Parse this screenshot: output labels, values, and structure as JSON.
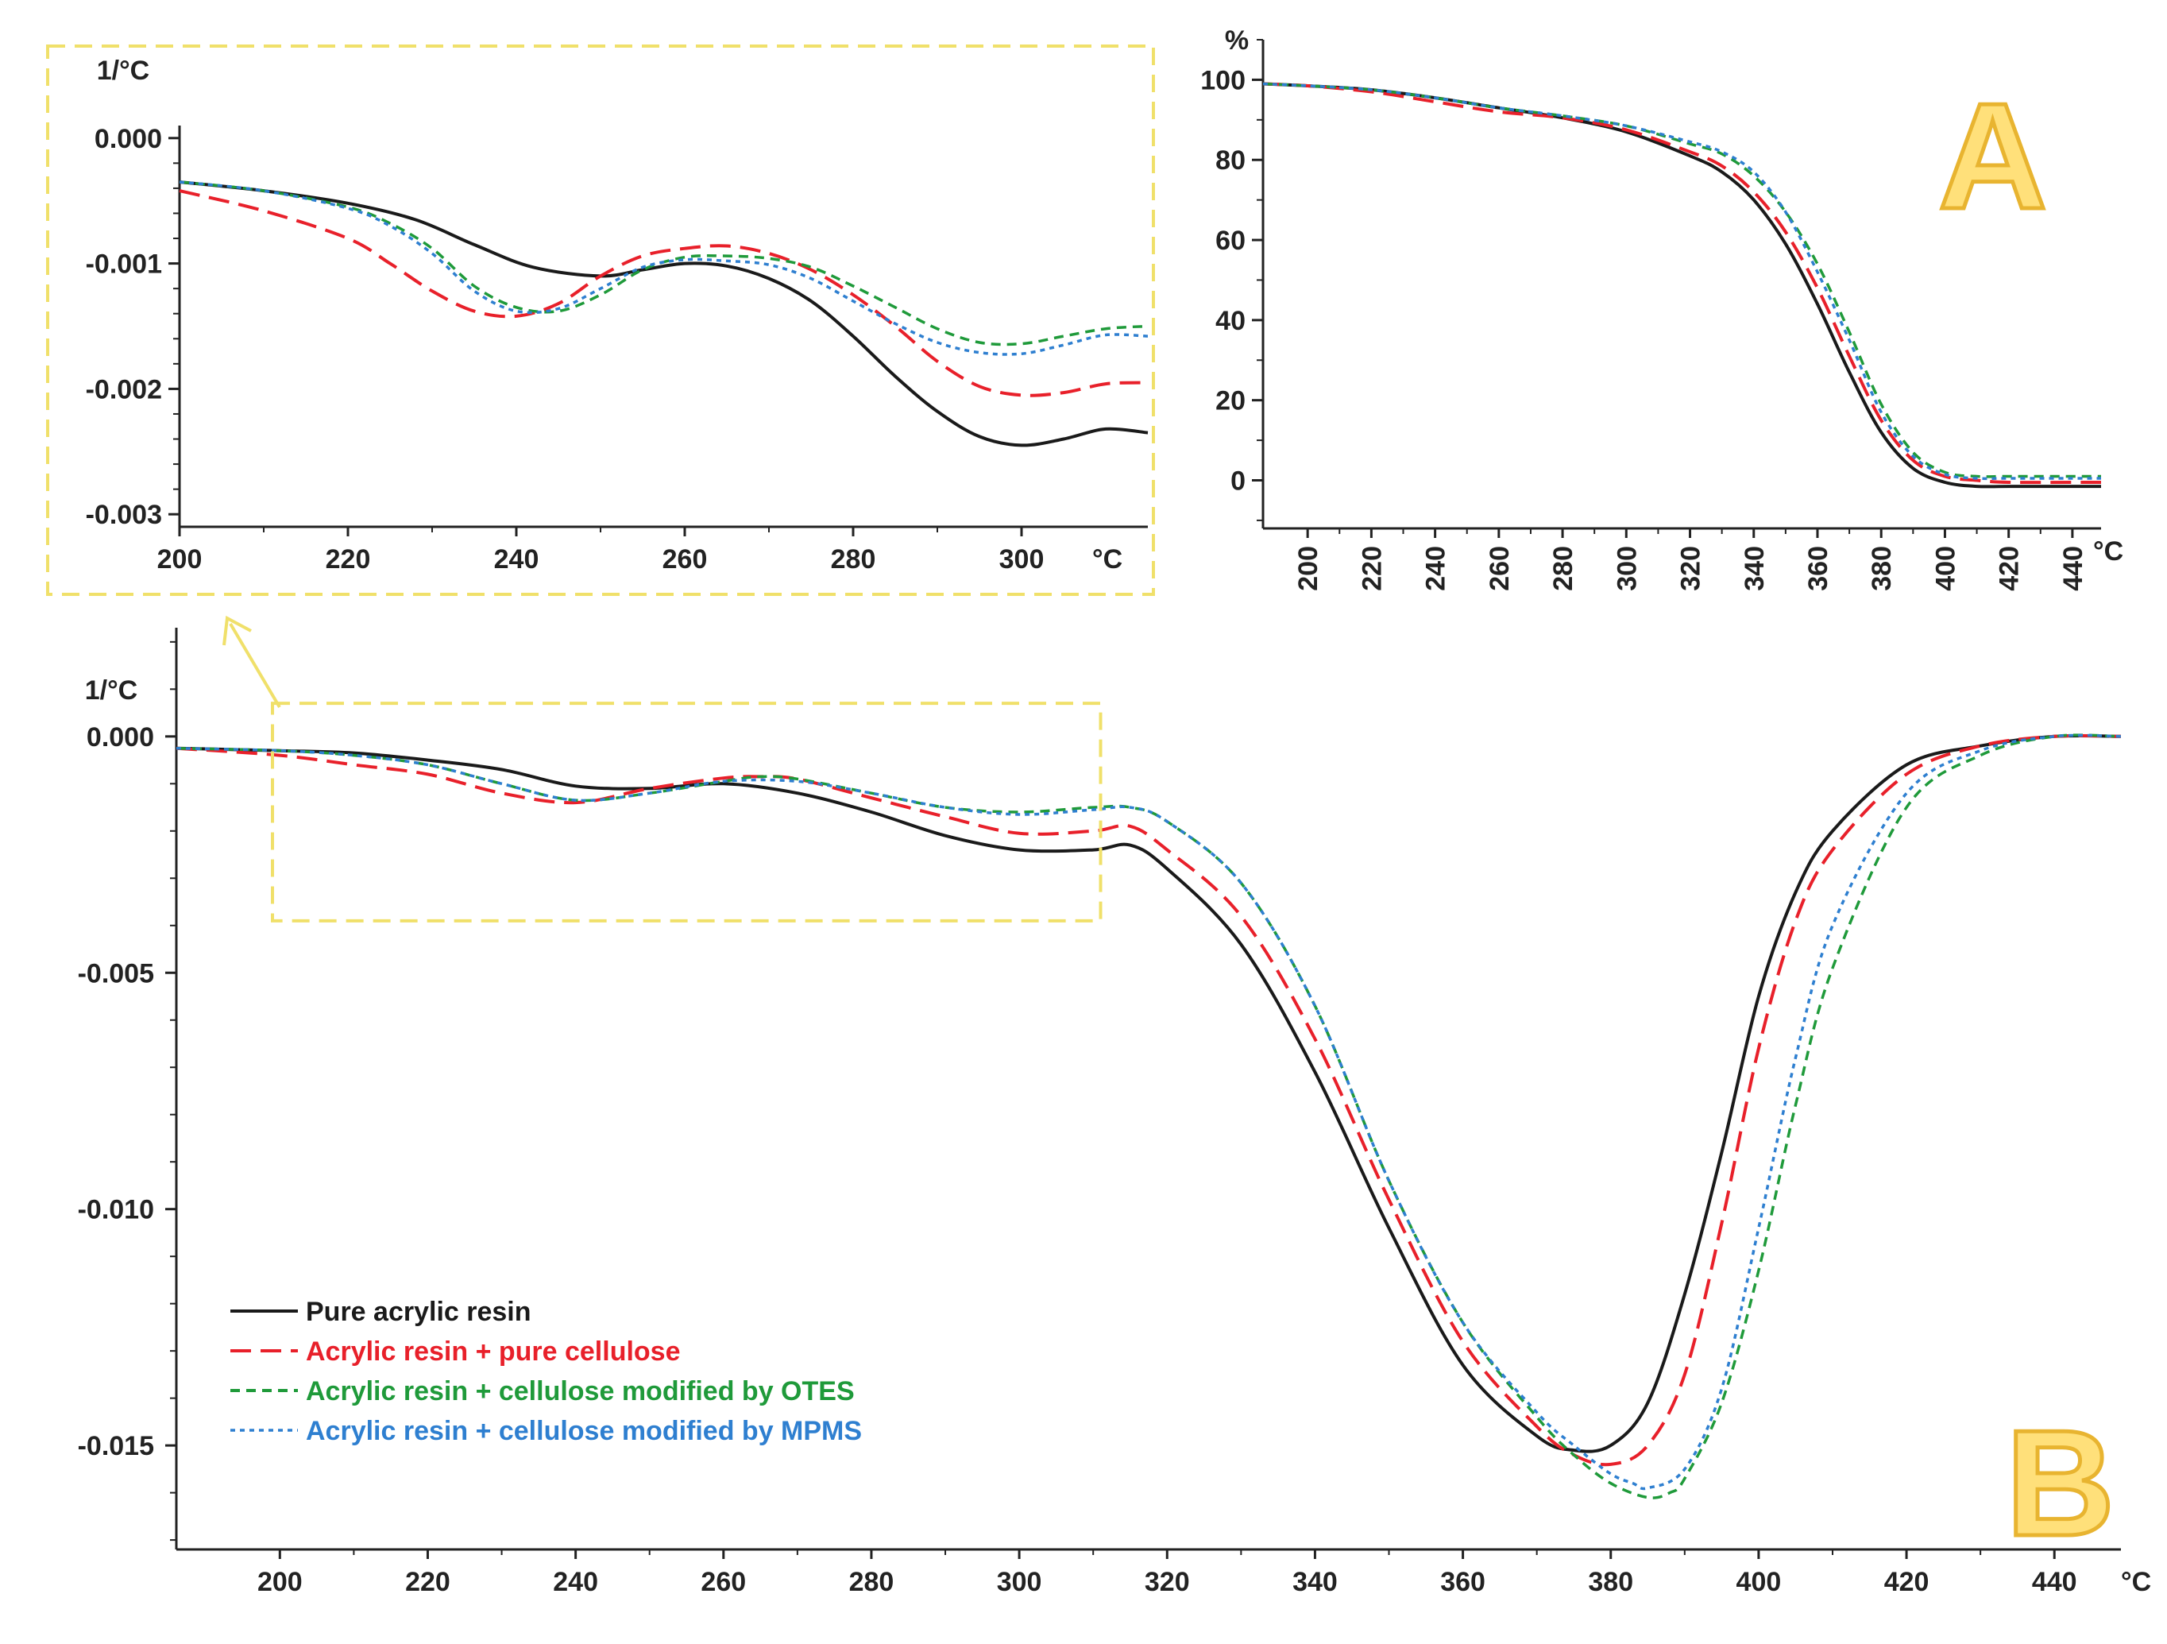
{
  "colors": {
    "pure": "#1a1a1a",
    "cellulose": "#e8202a",
    "otes": "#1f9a3a",
    "mpms": "#2e7fd0",
    "highlight": "#f0e06a",
    "panel_letter": "#ffe07a"
  },
  "chart_data": [
    {
      "id": "B",
      "panel_label": "B",
      "type": "line",
      "title": "",
      "ylabel": "1/°C",
      "xlabel": "°C",
      "xlim": [
        186,
        449
      ],
      "ylim": [
        -0.0172,
        0.0023
      ],
      "x_ticks": [
        200,
        220,
        240,
        260,
        280,
        300,
        320,
        340,
        360,
        380,
        400,
        420,
        440
      ],
      "x_tick_labels": [
        "200",
        "220",
        "240",
        "260",
        "280",
        "300",
        "320",
        "340",
        "360",
        "380",
        "400",
        "420",
        "440"
      ],
      "y_ticks": [
        0.0,
        -0.005,
        -0.01,
        -0.015
      ],
      "y_tick_labels": [
        "0.000",
        "-0.005",
        "-0.010",
        "-0.015"
      ],
      "legend": [
        {
          "key": "pure",
          "label": "Pure acrylic resin"
        },
        {
          "key": "cellulose",
          "label": "Acrylic resin + pure cellulose"
        },
        {
          "key": "otes",
          "label": "Acrylic resin + cellulose modified by OTES"
        },
        {
          "key": "mpms",
          "label": "Acrylic resin + cellulose modified by MPMS"
        }
      ],
      "highlight_region": {
        "x": [
          199,
          311
        ],
        "y": [
          -0.0039,
          0.0007
        ]
      },
      "series": [
        {
          "key": "pure",
          "name": "Pure acrylic resin",
          "x": [
            186,
            200,
            210,
            220,
            230,
            240,
            250,
            260,
            270,
            280,
            290,
            300,
            310,
            315,
            320,
            330,
            340,
            350,
            360,
            370,
            375,
            380,
            385,
            390,
            395,
            400,
            405,
            410,
            420,
            430,
            440,
            449
          ],
          "y": [
            -0.00025,
            -0.0003,
            -0.00035,
            -0.0005,
            -0.0007,
            -0.00105,
            -0.0011,
            -0.001,
            -0.0012,
            -0.0016,
            -0.0021,
            -0.0024,
            -0.0024,
            -0.0023,
            -0.0028,
            -0.0044,
            -0.0071,
            -0.0104,
            -0.0133,
            -0.0148,
            -0.0151,
            -0.015,
            -0.0141,
            -0.0118,
            -0.0088,
            -0.0055,
            -0.0033,
            -0.002,
            -0.0006,
            -0.0002,
            0.0,
            0.0
          ]
        },
        {
          "key": "cellulose",
          "name": "Acrylic resin + pure cellulose",
          "x": [
            186,
            200,
            210,
            220,
            230,
            240,
            250,
            260,
            265,
            270,
            280,
            290,
            300,
            310,
            315,
            320,
            330,
            340,
            350,
            360,
            370,
            375,
            380,
            385,
            390,
            395,
            400,
            405,
            410,
            420,
            430,
            440,
            449
          ],
          "y": [
            -0.00025,
            -0.0004,
            -0.0006,
            -0.0008,
            -0.0012,
            -0.0014,
            -0.0011,
            -0.00088,
            -0.00085,
            -0.0009,
            -0.0013,
            -0.0017,
            -0.00205,
            -0.002,
            -0.0019,
            -0.0024,
            -0.0038,
            -0.0064,
            -0.0098,
            -0.0128,
            -0.0146,
            -0.0152,
            -0.0154,
            -0.015,
            -0.0135,
            -0.0103,
            -0.0066,
            -0.0039,
            -0.0024,
            -0.0008,
            -0.0002,
            0.0,
            0.0
          ]
        },
        {
          "key": "otes",
          "name": "Acrylic resin + cellulose modified by OTES",
          "x": [
            186,
            200,
            210,
            220,
            230,
            240,
            250,
            260,
            265,
            270,
            280,
            290,
            300,
            310,
            315,
            320,
            330,
            340,
            350,
            360,
            370,
            375,
            380,
            385,
            388,
            390,
            395,
            400,
            405,
            410,
            420,
            430,
            440,
            449
          ],
          "y": [
            -0.00025,
            -0.0003,
            -0.0004,
            -0.0006,
            -0.001,
            -0.00135,
            -0.0012,
            -0.00095,
            -0.00085,
            -0.0009,
            -0.0012,
            -0.0015,
            -0.0016,
            -0.0015,
            -0.0015,
            -0.0018,
            -0.0031,
            -0.0057,
            -0.0094,
            -0.0124,
            -0.0144,
            -0.0152,
            -0.0158,
            -0.0161,
            -0.016,
            -0.0157,
            -0.0141,
            -0.0113,
            -0.0078,
            -0.0049,
            -0.0015,
            -0.0004,
            0.0,
            0.0
          ]
        },
        {
          "key": "mpms",
          "name": "Acrylic resin + cellulose modified by MPMS",
          "x": [
            186,
            200,
            210,
            220,
            230,
            240,
            250,
            260,
            270,
            280,
            290,
            300,
            310,
            315,
            320,
            330,
            340,
            350,
            360,
            370,
            375,
            380,
            383,
            385,
            390,
            395,
            400,
            405,
            410,
            420,
            430,
            440,
            449
          ],
          "y": [
            -0.00025,
            -0.0003,
            -0.0004,
            -0.0006,
            -0.001,
            -0.00135,
            -0.0012,
            -0.00095,
            -0.00095,
            -0.0012,
            -0.0015,
            -0.00165,
            -0.00155,
            -0.0015,
            -0.0018,
            -0.0031,
            -0.0057,
            -0.0094,
            -0.0124,
            -0.0143,
            -0.015,
            -0.0156,
            -0.0158,
            -0.0159,
            -0.0155,
            -0.0138,
            -0.0104,
            -0.0068,
            -0.004,
            -0.0012,
            -0.0003,
            0.0,
            0.0
          ]
        }
      ]
    },
    {
      "id": "A",
      "panel_label": "A",
      "type": "line",
      "title": "",
      "ylabel": "%",
      "xlabel": "°C",
      "xlim": [
        186,
        449
      ],
      "ylim": [
        -12,
        110
      ],
      "x_ticks": [
        200,
        220,
        240,
        260,
        280,
        300,
        320,
        340,
        360,
        380,
        400,
        420,
        440
      ],
      "x_tick_labels": [
        "200",
        "220",
        "240",
        "260",
        "280",
        "300",
        "320",
        "340",
        "360",
        "380",
        "400",
        "420",
        "440"
      ],
      "y_ticks": [
        0,
        20,
        40,
        60,
        80,
        100
      ],
      "y_tick_labels": [
        "0",
        "20",
        "40",
        "60",
        "80",
        "100"
      ],
      "series": [
        {
          "key": "pure",
          "name": "Pure acrylic resin",
          "x": [
            186,
            200,
            220,
            240,
            260,
            280,
            300,
            320,
            330,
            340,
            350,
            360,
            370,
            380,
            390,
            400,
            410,
            420,
            440,
            449
          ],
          "y": [
            99,
            98.5,
            97.5,
            95.5,
            93,
            90.5,
            87,
            81,
            77,
            70,
            59,
            44,
            27,
            12,
            3,
            -0.5,
            -1.5,
            -1.5,
            -1.5,
            -1.5
          ]
        },
        {
          "key": "cellulose",
          "name": "Acrylic resin + pure cellulose",
          "x": [
            186,
            200,
            220,
            240,
            260,
            280,
            300,
            320,
            330,
            340,
            350,
            360,
            370,
            380,
            390,
            400,
            410,
            420,
            440,
            449
          ],
          "y": [
            99,
            98.5,
            97,
            94.5,
            92,
            90.5,
            87.5,
            82,
            78.5,
            72,
            62,
            48,
            31,
            15,
            5,
            1,
            0,
            -0.5,
            -0.5,
            -0.5
          ]
        },
        {
          "key": "otes",
          "name": "Acrylic resin + cellulose modified by OTES",
          "x": [
            186,
            200,
            220,
            240,
            260,
            280,
            300,
            320,
            330,
            340,
            350,
            360,
            370,
            380,
            390,
            400,
            410,
            420,
            440,
            449
          ],
          "y": [
            99,
            98.5,
            97.5,
            95.5,
            93,
            91,
            88.5,
            84,
            81.5,
            76,
            67,
            54,
            37,
            19,
            7,
            2,
            1,
            1,
            1,
            1
          ]
        },
        {
          "key": "mpms",
          "name": "Acrylic resin + cellulose modified by MPMS",
          "x": [
            186,
            200,
            220,
            240,
            260,
            280,
            300,
            320,
            330,
            340,
            350,
            360,
            370,
            380,
            390,
            400,
            410,
            420,
            440,
            449
          ],
          "y": [
            99,
            98.5,
            97.5,
            95.5,
            93,
            91,
            88.5,
            84.5,
            82,
            77,
            67,
            52,
            35,
            17,
            6,
            1.5,
            0.5,
            0.5,
            0.5,
            0.5
          ]
        }
      ]
    },
    {
      "id": "inset",
      "panel_label": "",
      "type": "line",
      "title": "",
      "ylabel": "1/°C",
      "xlabel": "°C",
      "xlim": [
        200,
        315
      ],
      "ylim": [
        -0.0031,
        0.0001
      ],
      "x_ticks": [
        200,
        220,
        240,
        260,
        280,
        300
      ],
      "x_tick_labels": [
        "200",
        "220",
        "240",
        "260",
        "280",
        "300"
      ],
      "y_ticks": [
        0.0,
        -0.001,
        -0.002,
        -0.003
      ],
      "y_tick_labels": [
        "0.000",
        "-0.001",
        "-0.002",
        "-0.003"
      ],
      "series": [
        {
          "key": "pure",
          "name": "Pure acrylic resin",
          "x": [
            200,
            210,
            220,
            228,
            235,
            242,
            250,
            255,
            260,
            265,
            270,
            275,
            280,
            285,
            290,
            295,
            300,
            305,
            310,
            315
          ],
          "y": [
            -0.00035,
            -0.00042,
            -0.00052,
            -0.00065,
            -0.00085,
            -0.00103,
            -0.0011,
            -0.00105,
            -0.001,
            -0.00102,
            -0.00112,
            -0.0013,
            -0.00158,
            -0.0019,
            -0.00218,
            -0.00238,
            -0.00245,
            -0.0024,
            -0.00232,
            -0.00235
          ]
        },
        {
          "key": "cellulose",
          "name": "Acrylic resin + pure cellulose",
          "x": [
            200,
            210,
            220,
            225,
            230,
            235,
            240,
            245,
            250,
            255,
            260,
            265,
            270,
            275,
            280,
            285,
            290,
            295,
            300,
            305,
            310,
            315
          ],
          "y": [
            -0.00042,
            -0.00058,
            -0.0008,
            -0.001,
            -0.00122,
            -0.00138,
            -0.00142,
            -0.00132,
            -0.0011,
            -0.00094,
            -0.00088,
            -0.00086,
            -0.00092,
            -0.00105,
            -0.00125,
            -0.0015,
            -0.00178,
            -0.00198,
            -0.00205,
            -0.00203,
            -0.00196,
            -0.00195
          ]
        },
        {
          "key": "otes",
          "name": "Acrylic resin + cellulose modified by OTES",
          "x": [
            200,
            210,
            220,
            225,
            230,
            235,
            240,
            245,
            250,
            255,
            260,
            265,
            270,
            275,
            280,
            285,
            290,
            295,
            300,
            305,
            310,
            315
          ],
          "y": [
            -0.00035,
            -0.00042,
            -0.00055,
            -0.00068,
            -0.00088,
            -0.00118,
            -0.00135,
            -0.00138,
            -0.00125,
            -0.00105,
            -0.00095,
            -0.00094,
            -0.00096,
            -0.00103,
            -0.00118,
            -0.00135,
            -0.00152,
            -0.00163,
            -0.00164,
            -0.00158,
            -0.00152,
            -0.0015
          ]
        },
        {
          "key": "mpms",
          "name": "Acrylic resin + cellulose modified by MPMS",
          "x": [
            200,
            210,
            220,
            225,
            230,
            235,
            240,
            245,
            250,
            255,
            260,
            265,
            270,
            275,
            280,
            285,
            290,
            295,
            300,
            305,
            310,
            315
          ],
          "y": [
            -0.00035,
            -0.00042,
            -0.00056,
            -0.0007,
            -0.00092,
            -0.00122,
            -0.00138,
            -0.00136,
            -0.0012,
            -0.00103,
            -0.00097,
            -0.00098,
            -0.00101,
            -0.00112,
            -0.0013,
            -0.00148,
            -0.00163,
            -0.00171,
            -0.00172,
            -0.00165,
            -0.00157,
            -0.00158
          ]
        }
      ]
    }
  ]
}
